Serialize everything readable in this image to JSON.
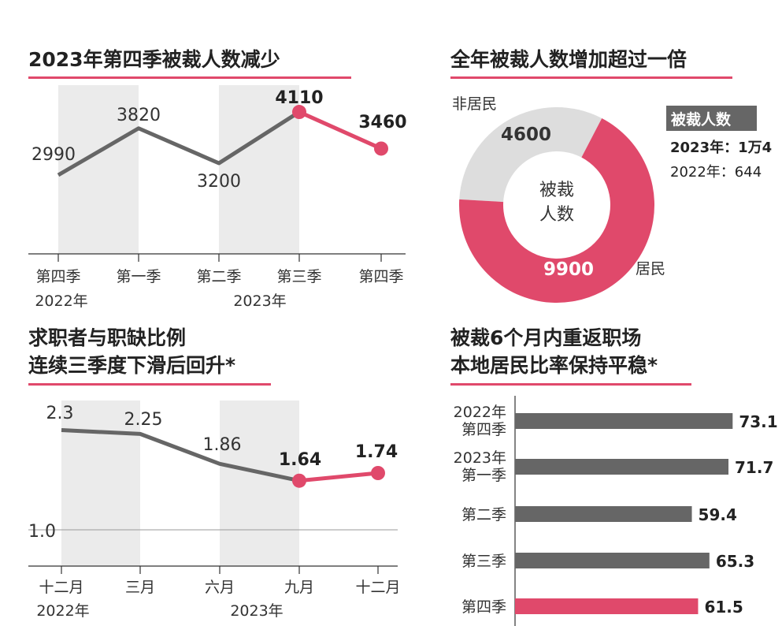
{
  "colors": {
    "gray": "#666666",
    "accent": "#e0496b",
    "light": "#dddddd",
    "shade": "#ebebeb"
  },
  "chart_data": [
    {
      "type": "line",
      "title": "2023年第四季被裁人数减少",
      "categories": [
        "第四季",
        "第一季",
        "第二季",
        "第三季",
        "第四季"
      ],
      "year_labels": [
        "2022年",
        "2023年"
      ],
      "values": [
        2990,
        3820,
        3200,
        4110,
        3460
      ],
      "value_labels": [
        "2990",
        "3820",
        "3200",
        "4110",
        "3460"
      ],
      "highlight_from_index": 3
    },
    {
      "type": "pie",
      "title": "全年被裁人数增加超过一倍",
      "center_label": [
        "被裁",
        "人数"
      ],
      "slices": [
        {
          "label": "非居民",
          "value": 4600,
          "value_label": "4600"
        },
        {
          "label": "居民",
          "value": 9900,
          "value_label": "9900"
        }
      ],
      "legend": {
        "header": "被裁人数",
        "line1": "2023年：1万4",
        "line2": "2022年：644"
      }
    },
    {
      "type": "line",
      "title": [
        "求职者与职缺比例",
        "连续三季度下滑后回升*"
      ],
      "categories": [
        "十二月",
        "三月",
        "六月",
        "九月",
        "十二月"
      ],
      "year_labels": [
        "2022年",
        "2023年"
      ],
      "values": [
        2.3,
        2.25,
        1.86,
        1.64,
        1.74
      ],
      "value_labels": [
        "2.3",
        "2.25",
        "1.86",
        "1.64",
        "1.74"
      ],
      "reference_label": "1.0",
      "highlight_from_index": 3
    },
    {
      "type": "bar",
      "orientation": "horizontal",
      "title": [
        "被裁6个月内重返职场",
        "本地居民比率保持平稳*"
      ],
      "categories": [
        [
          "2022年",
          "第四季"
        ],
        [
          "2023年",
          "第一季"
        ],
        [
          "第二季"
        ],
        [
          "第三季"
        ],
        [
          "第四季"
        ]
      ],
      "values": [
        73.1,
        71.7,
        59.4,
        65.3,
        61.5
      ],
      "value_labels": [
        "73.1",
        "71.7",
        "59.4",
        "65.3",
        "61.5"
      ],
      "highlight_index": 4
    }
  ]
}
